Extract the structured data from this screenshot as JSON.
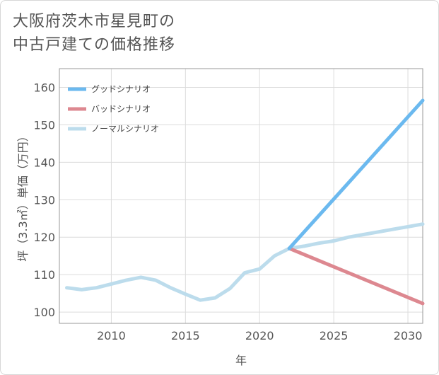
{
  "title": {
    "line1": "大阪府茨木市星見町の",
    "line2": "中古戸建ての価格推移"
  },
  "chart_data": {
    "type": "line",
    "title": "大阪府茨木市星見町の中古戸建ての価格推移",
    "xlabel": "年",
    "ylabel": "坪（3.3㎡）単価（万円）",
    "xlim": [
      2006.5,
      2031
    ],
    "ylim": [
      97,
      165
    ],
    "xticks": [
      2010,
      2015,
      2020,
      2025,
      2030
    ],
    "yticks": [
      100,
      110,
      120,
      130,
      140,
      150,
      160
    ],
    "grid": true,
    "legend_position": "top-left",
    "series": [
      {
        "name": "グッドシナリオ",
        "color": "#6bb9ef",
        "x": [
          2022,
          2031
        ],
        "y": [
          117,
          156.5
        ]
      },
      {
        "name": "バッドシナリオ",
        "color": "#dd8890",
        "x": [
          2022,
          2031
        ],
        "y": [
          117,
          102.3
        ]
      },
      {
        "name": "ノーマルシナリオ",
        "color": "#bcdcec",
        "x": [
          2007,
          2008,
          2009,
          2010,
          2011,
          2012,
          2013,
          2014,
          2015,
          2016,
          2017,
          2018,
          2019,
          2020,
          2021,
          2022,
          2023,
          2024,
          2025,
          2026,
          2027,
          2028,
          2029,
          2030,
          2031
        ],
        "y": [
          106.5,
          106,
          106.5,
          107.5,
          108.5,
          109.3,
          108.5,
          106.5,
          104.8,
          103.2,
          103.8,
          106.3,
          110.5,
          111.5,
          115,
          117,
          117.6,
          118.4,
          119,
          120,
          120.7,
          121.4,
          122.1,
          122.8,
          123.5
        ]
      }
    ]
  }
}
